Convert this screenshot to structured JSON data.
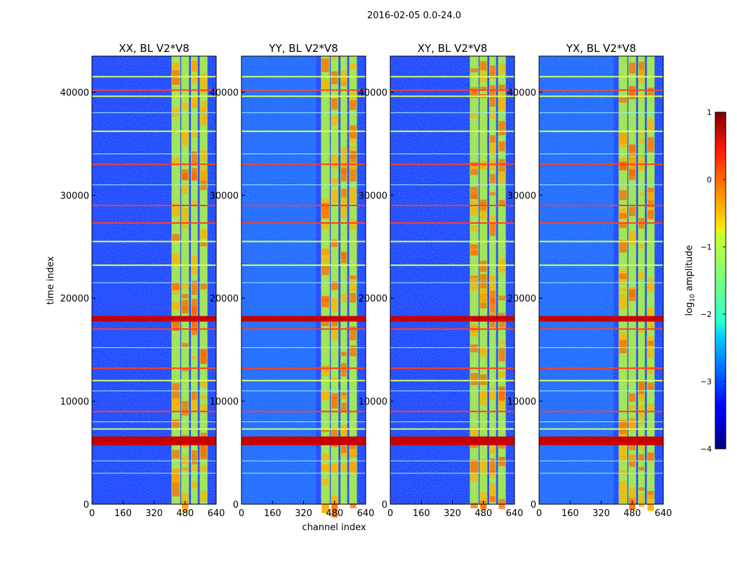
{
  "figure": {
    "suptitle": "2016-02-05 0.0-24.0"
  },
  "chart_data": {
    "type": "heatmap",
    "panels": [
      {
        "title": "XX, BL V2*V8"
      },
      {
        "title": "YY, BL V2*V8"
      },
      {
        "title": "XY, BL V2*V8"
      },
      {
        "title": "YX, BL V2*V8"
      }
    ],
    "xlabel": "channel index",
    "ylabel": "time index",
    "xlim": [
      0,
      640
    ],
    "ylim": [
      0,
      43500
    ],
    "xticks": [
      0,
      160,
      320,
      480,
      640
    ],
    "yticks": [
      0,
      10000,
      20000,
      30000,
      40000
    ],
    "bright_channel_bands": [
      [
        410,
        455
      ],
      [
        460,
        500
      ],
      [
        510,
        545
      ],
      [
        555,
        595
      ]
    ],
    "flagged_time_rows": [
      6000,
      6300,
      18000,
      17000,
      36200,
      29000,
      25500,
      27300,
      41500,
      40200,
      39600,
      33000,
      23200,
      13200,
      12000,
      9000,
      7300
    ],
    "colorbar": {
      "label": "log10 amplitude",
      "min": -4,
      "max": 1,
      "ticks": [
        -4,
        -3,
        -2,
        -1,
        0,
        1
      ],
      "tick_labels": [
        "−4",
        "−3",
        "−2",
        "−1",
        "0",
        "1"
      ],
      "colormap": "jet"
    }
  }
}
